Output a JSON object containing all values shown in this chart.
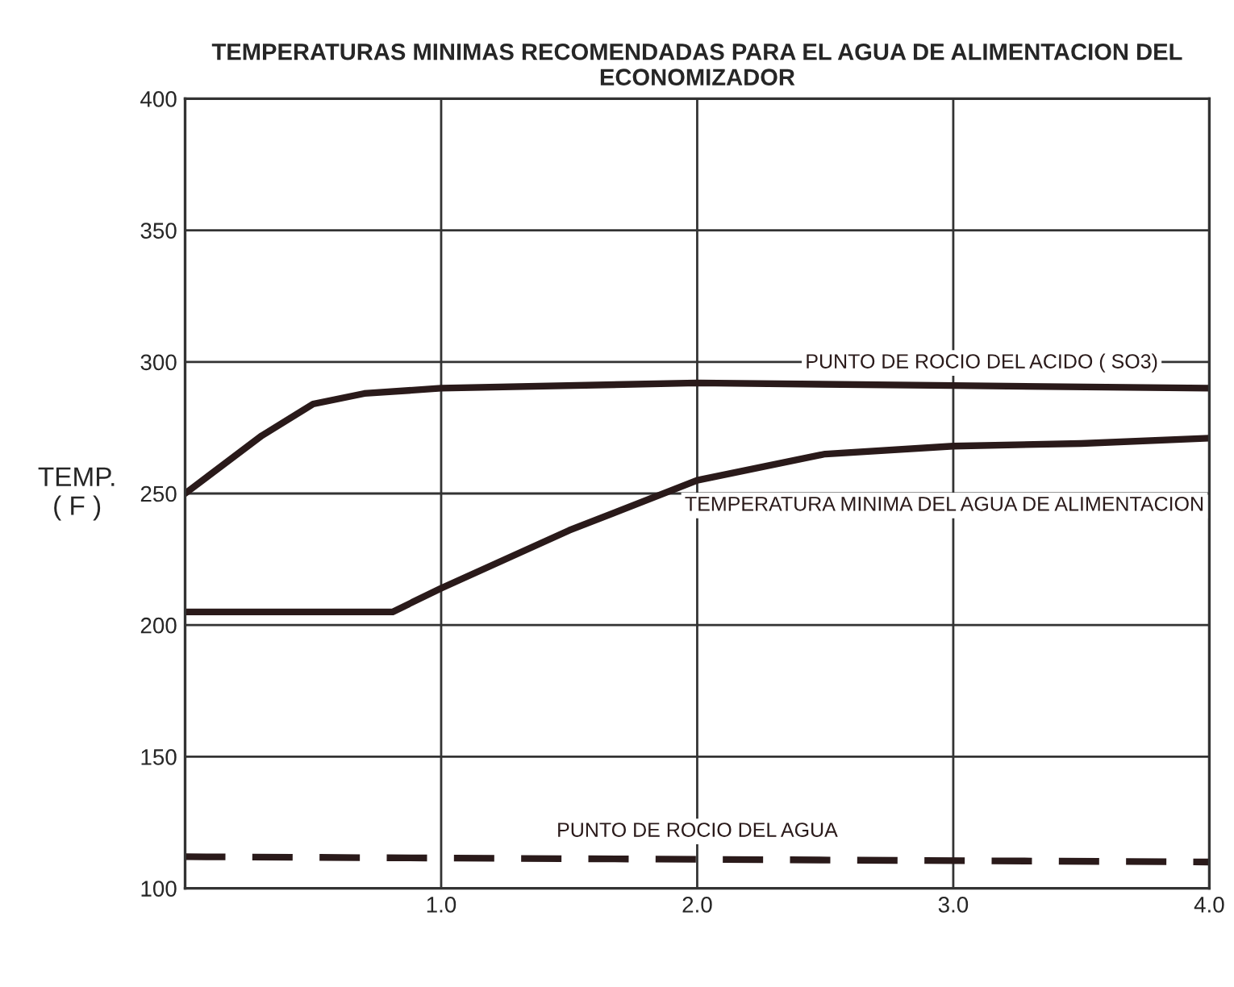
{
  "chart_data": {
    "type": "line",
    "title": "TEMPERATURAS MINIMAS RECOMENDADAS PARA EL AGUA DE ALIMENTACION DEL\nECONOMIZADOR",
    "ylabel": "TEMP.\n( F )",
    "series": [
      {
        "name": "PUNTO DE ROCIO DEL ACIDO ( SO3)",
        "color": "#2a1a1a",
        "line_style": "solid",
        "x": [
          0,
          0.3,
          0.5,
          0.7,
          1.0,
          2.0,
          3.0,
          4.0
        ],
        "values": [
          250,
          272,
          284,
          288,
          290,
          292,
          291,
          290
        ]
      },
      {
        "name": "TEMPERATURA MINIMA DEL AGUA DE ALIMENTACION",
        "color": "#2a1a1a",
        "line_style": "solid",
        "x": [
          0,
          0.81,
          1.0,
          1.5,
          2.0,
          2.5,
          3.0,
          3.5,
          4.0
        ],
        "values": [
          205,
          205,
          214,
          236,
          255,
          265,
          268,
          269,
          271
        ]
      },
      {
        "name": "PUNTO DE ROCIO DEL AGUA",
        "color": "#2a1a1a",
        "line_style": "dashed",
        "x": [
          0,
          4.0
        ],
        "values": [
          112,
          110
        ]
      }
    ],
    "xlim": [
      0,
      4.0
    ],
    "xticks": [
      {
        "value": 1.0,
        "label": "1.0"
      },
      {
        "value": 2.0,
        "label": "2.0"
      },
      {
        "value": 3.0,
        "label": "3.0"
      },
      {
        "value": 4.0,
        "label": "4.0"
      }
    ],
    "ylim": [
      100,
      400
    ],
    "yticks": [
      100,
      150,
      200,
      250,
      300,
      350,
      400
    ],
    "grid": true,
    "legend": false,
    "marker": "none"
  }
}
